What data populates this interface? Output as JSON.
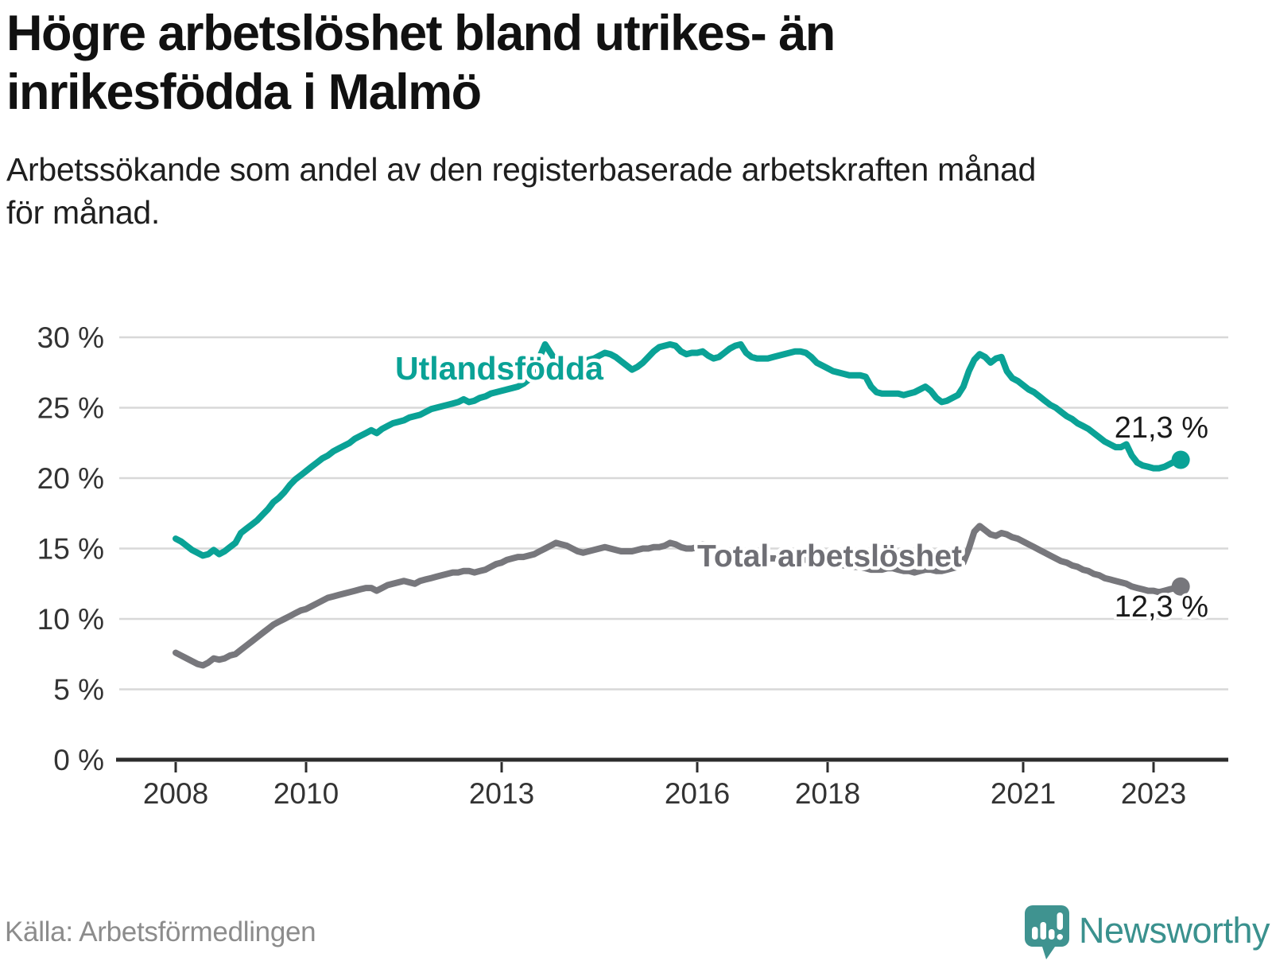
{
  "title": {
    "lines": [
      "Högre arbetslöshet bland utrikes- än",
      "inrikesfödda i Malmö"
    ]
  },
  "subtitle": {
    "lines": [
      "Arbetssökande som andel av den registerbaserade arbetskraften månad",
      "för månad."
    ]
  },
  "footer": {
    "source": "Källa: Arbetsförmedlingen",
    "brand": "Newsworthy"
  },
  "colors": {
    "teal_series": "#0aa296",
    "gray_series": "#77777c",
    "gray_label": "#6f6f75",
    "value_label": "#1a1a1a",
    "gridline": "#d8d8d8",
    "axis": "#2d2d2d",
    "tick_label": "#333333",
    "logo_icon": "#3f9390",
    "logo_text": "#3a918e",
    "source_text": "#8c8c8c"
  },
  "chart_data": {
    "type": "line",
    "title": "Högre arbetslöshet bland utrikes- än inrikesfödda i Malmö",
    "subtitle": "Arbetssökande som andel av den registerbaserade arbetskraften månad för månad.",
    "xlabel": "",
    "ylabel": "",
    "ylim": [
      0,
      30
    ],
    "grid": true,
    "legend_position": "inline-labels",
    "x_start_year": 2008,
    "x_step_months": 1,
    "x_tick_values": [
      2008,
      2010,
      2013,
      2016,
      2018,
      2021,
      2023
    ],
    "x_tick_labels": [
      "2008",
      "2010",
      "2013",
      "2016",
      "2018",
      "2021",
      "2023"
    ],
    "y_tick_values": [
      30,
      25,
      20,
      15,
      10,
      5,
      0
    ],
    "y_tick_labels": [
      "30 %",
      "25 %",
      "20 %",
      "15 %",
      "10 %",
      "5 %",
      "0 %"
    ],
    "series": [
      {
        "name": "Utlandsfödda",
        "color": "#0aa296",
        "end_label": "21,3 %",
        "end_value": 21.3,
        "values": [
          15.7,
          15.5,
          15.2,
          14.9,
          14.7,
          14.5,
          14.6,
          14.9,
          14.6,
          14.8,
          15.1,
          15.4,
          16.1,
          16.4,
          16.7,
          17.0,
          17.4,
          17.8,
          18.3,
          18.6,
          19.0,
          19.5,
          19.9,
          20.2,
          20.5,
          20.8,
          21.1,
          21.4,
          21.6,
          21.9,
          22.1,
          22.3,
          22.5,
          22.8,
          23.0,
          23.2,
          23.4,
          23.2,
          23.5,
          23.7,
          23.9,
          24.0,
          24.1,
          24.3,
          24.4,
          24.5,
          24.7,
          24.9,
          25.0,
          25.1,
          25.2,
          25.3,
          25.4,
          25.6,
          25.4,
          25.5,
          25.7,
          25.8,
          26.0,
          26.1,
          26.2,
          26.3,
          26.4,
          26.5,
          26.7,
          27.0,
          27.6,
          28.6,
          29.5,
          28.9,
          28.3,
          28.0,
          27.9,
          28.0,
          28.1,
          28.2,
          28.4,
          28.5,
          28.7,
          28.9,
          28.8,
          28.6,
          28.3,
          28.0,
          27.7,
          27.9,
          28.2,
          28.6,
          29.0,
          29.3,
          29.4,
          29.5,
          29.4,
          29.0,
          28.8,
          28.9,
          28.9,
          29.0,
          28.7,
          28.5,
          28.6,
          28.9,
          29.2,
          29.4,
          29.5,
          28.9,
          28.6,
          28.5,
          28.5,
          28.5,
          28.6,
          28.7,
          28.8,
          28.9,
          29.0,
          29.0,
          28.9,
          28.6,
          28.2,
          28.0,
          27.8,
          27.6,
          27.5,
          27.4,
          27.3,
          27.3,
          27.3,
          27.2,
          26.5,
          26.1,
          26.0,
          26.0,
          26.0,
          26.0,
          25.9,
          26.0,
          26.1,
          26.3,
          26.5,
          26.2,
          25.7,
          25.4,
          25.5,
          25.7,
          25.9,
          26.5,
          27.6,
          28.4,
          28.8,
          28.6,
          28.2,
          28.5,
          28.6,
          27.6,
          27.1,
          26.9,
          26.6,
          26.3,
          26.1,
          25.8,
          25.5,
          25.2,
          25.0,
          24.7,
          24.4,
          24.2,
          23.9,
          23.7,
          23.5,
          23.2,
          22.9,
          22.6,
          22.4,
          22.2,
          22.2,
          22.4,
          21.6,
          21.1,
          20.9,
          20.8,
          20.7,
          20.7,
          20.8,
          21.0,
          21.2,
          21.3
        ]
      },
      {
        "name": "Total arbetslöshet",
        "color": "#77777c",
        "end_label": "12,3 %",
        "end_value": 12.3,
        "values": [
          7.6,
          7.4,
          7.2,
          7.0,
          6.8,
          6.7,
          6.9,
          7.2,
          7.1,
          7.2,
          7.4,
          7.5,
          7.8,
          8.1,
          8.4,
          8.7,
          9.0,
          9.3,
          9.6,
          9.8,
          10.0,
          10.2,
          10.4,
          10.6,
          10.7,
          10.9,
          11.1,
          11.3,
          11.5,
          11.6,
          11.7,
          11.8,
          11.9,
          12.0,
          12.1,
          12.2,
          12.2,
          12.0,
          12.2,
          12.4,
          12.5,
          12.6,
          12.7,
          12.6,
          12.5,
          12.7,
          12.8,
          12.9,
          13.0,
          13.1,
          13.2,
          13.3,
          13.3,
          13.4,
          13.4,
          13.3,
          13.4,
          13.5,
          13.7,
          13.9,
          14.0,
          14.2,
          14.3,
          14.4,
          14.4,
          14.5,
          14.6,
          14.8,
          15.0,
          15.2,
          15.4,
          15.3,
          15.2,
          15.0,
          14.8,
          14.7,
          14.8,
          14.9,
          15.0,
          15.1,
          15.0,
          14.9,
          14.8,
          14.8,
          14.8,
          14.9,
          15.0,
          15.0,
          15.1,
          15.1,
          15.2,
          15.4,
          15.3,
          15.1,
          15.0,
          15.0,
          15.1,
          15.3,
          15.2,
          15.0,
          14.9,
          14.8,
          14.7,
          14.6,
          14.6,
          14.5,
          14.5,
          14.4,
          14.4,
          14.3,
          14.3,
          14.3,
          14.3,
          14.4,
          14.4,
          14.3,
          14.2,
          14.1,
          14.1,
          14.1,
          14.0,
          13.9,
          13.9,
          13.8,
          13.8,
          13.7,
          13.7,
          13.6,
          13.5,
          13.5,
          13.5,
          13.6,
          13.6,
          13.5,
          13.4,
          13.4,
          13.3,
          13.4,
          13.5,
          13.5,
          13.4,
          13.4,
          13.5,
          13.6,
          13.7,
          14.0,
          15.0,
          16.2,
          16.6,
          16.3,
          16.0,
          15.9,
          16.1,
          16.0,
          15.8,
          15.7,
          15.5,
          15.3,
          15.1,
          14.9,
          14.7,
          14.5,
          14.3,
          14.1,
          14.0,
          13.8,
          13.7,
          13.5,
          13.4,
          13.2,
          13.1,
          12.9,
          12.8,
          12.7,
          12.6,
          12.5,
          12.3,
          12.2,
          12.1,
          12.0,
          12.0,
          11.9,
          12.0,
          12.1,
          12.2,
          12.3
        ]
      }
    ]
  }
}
